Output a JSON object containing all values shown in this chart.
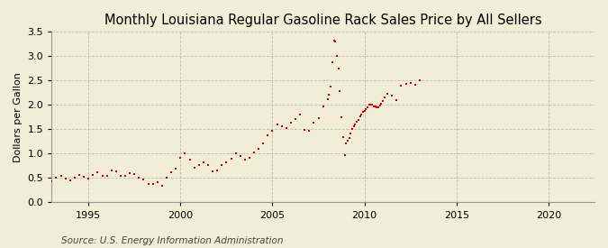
{
  "title": "Monthly Louisiana Regular Gasoline Rack Sales Price by All Sellers",
  "ylabel": "Dollars per Gallon",
  "source": "Source: U.S. Energy Information Administration",
  "bg_color": "#F2EDD7",
  "plot_bg_color": "#F2EDD7",
  "marker_color": "#CC0000",
  "marker": "s",
  "marker_size": 4,
  "xlim": [
    1993.0,
    2022.5
  ],
  "ylim": [
    0.0,
    3.5
  ],
  "xticks": [
    1995,
    2000,
    2005,
    2010,
    2015,
    2020
  ],
  "yticks": [
    0.0,
    0.5,
    1.0,
    1.5,
    2.0,
    2.5,
    3.0,
    3.5
  ],
  "grid_color": "#BBBBBB",
  "grid_style": "--",
  "title_fontsize": 10.5,
  "label_fontsize": 8,
  "tick_fontsize": 8,
  "source_fontsize": 7.5,
  "data_x": [
    1993.0,
    1993.25,
    1993.5,
    1993.75,
    1994.0,
    1994.25,
    1994.5,
    1994.75,
    1995.0,
    1995.25,
    1995.5,
    1995.75,
    1996.0,
    1996.25,
    1996.5,
    1996.75,
    1997.0,
    1997.25,
    1997.5,
    1997.75,
    1998.0,
    1998.25,
    1998.5,
    1998.75,
    1999.0,
    1999.25,
    1999.5,
    1999.75,
    2000.0,
    2000.25,
    2000.5,
    2000.75,
    2001.0,
    2001.25,
    2001.5,
    2001.75,
    2002.0,
    2002.25,
    2002.5,
    2002.75,
    2003.0,
    2003.25,
    2003.5,
    2003.75,
    2004.0,
    2004.25,
    2004.5,
    2004.75,
    2005.0,
    2005.25,
    2005.5,
    2005.75,
    2006.0,
    2006.25,
    2006.5,
    2006.75,
    2007.0,
    2007.25,
    2007.5,
    2007.75,
    2008.0,
    2008.083,
    2008.167,
    2008.25,
    2008.333,
    2008.417,
    2008.5,
    2008.583,
    2008.667,
    2008.75,
    2008.833,
    2008.917,
    2009.0,
    2009.083,
    2009.167,
    2009.25,
    2009.333,
    2009.417,
    2009.5,
    2009.583,
    2009.667,
    2009.75,
    2009.833,
    2009.917,
    2010.0,
    2010.083,
    2010.167,
    2010.25,
    2010.333,
    2010.417,
    2010.5,
    2010.583,
    2010.667,
    2010.75,
    2010.833,
    2010.917,
    2011.0,
    2011.083,
    2011.25,
    2011.5,
    2011.75,
    2012.0,
    2012.25,
    2012.5,
    2012.75,
    2013.0
  ],
  "data_y": [
    0.43,
    0.5,
    0.55,
    0.49,
    0.45,
    0.5,
    0.57,
    0.53,
    0.49,
    0.57,
    0.62,
    0.55,
    0.55,
    0.65,
    0.63,
    0.54,
    0.55,
    0.6,
    0.58,
    0.5,
    0.47,
    0.38,
    0.38,
    0.41,
    0.35,
    0.5,
    0.62,
    0.7,
    0.92,
    1.0,
    0.88,
    0.72,
    0.76,
    0.82,
    0.76,
    0.64,
    0.65,
    0.76,
    0.82,
    0.9,
    1.0,
    0.95,
    0.88,
    0.92,
    1.02,
    1.1,
    1.22,
    1.37,
    1.47,
    1.6,
    1.57,
    1.52,
    1.63,
    1.72,
    1.8,
    1.48,
    1.47,
    1.63,
    1.73,
    1.97,
    2.12,
    2.22,
    2.38,
    2.88,
    3.32,
    3.3,
    3.0,
    2.75,
    2.28,
    1.75,
    1.35,
    0.98,
    1.22,
    1.27,
    1.32,
    1.42,
    1.5,
    1.56,
    1.6,
    1.65,
    1.7,
    1.76,
    1.8,
    1.85,
    1.88,
    1.92,
    1.95,
    2.0,
    2.0,
    2.0,
    1.97,
    1.97,
    1.96,
    1.96,
    1.98,
    2.02,
    2.08,
    2.15,
    2.23,
    2.2,
    2.1,
    2.4,
    2.43,
    2.45,
    2.42,
    2.5
  ]
}
